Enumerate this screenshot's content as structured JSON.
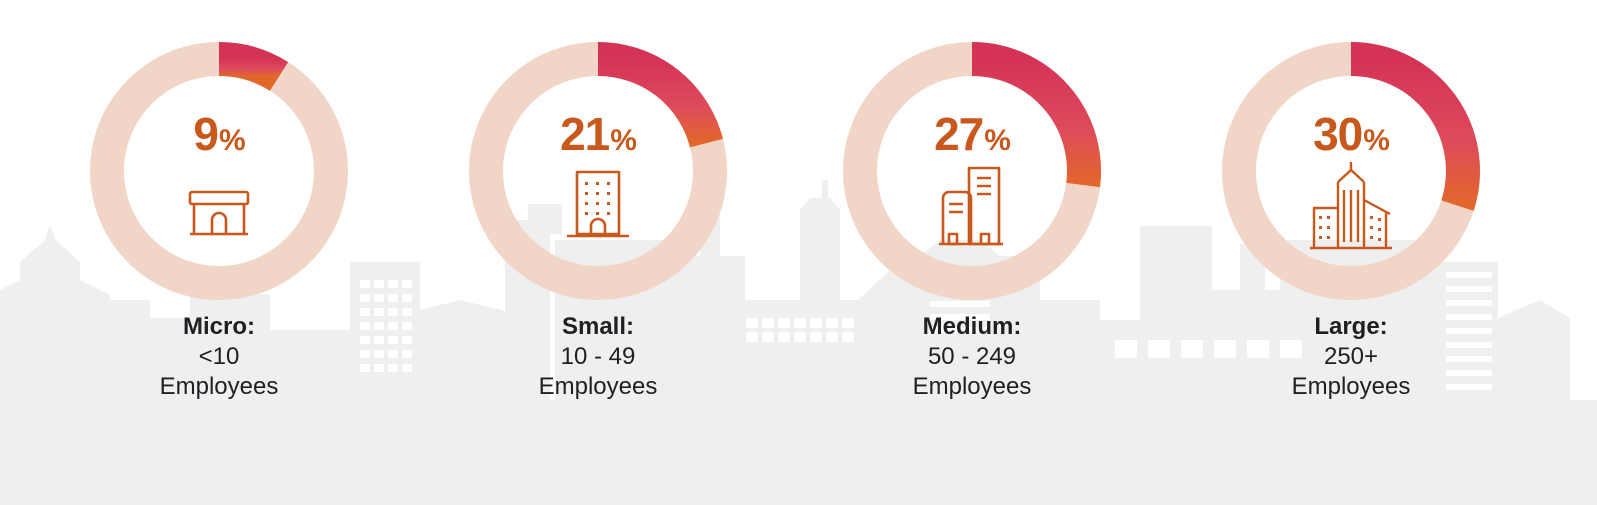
{
  "colors": {
    "background": "#ffffff",
    "skyline": "#efefef",
    "ring_track": "#f1d6c7",
    "arc_start": "#d43355",
    "arc_end": "#e2672b",
    "accent_text": "#c8581c",
    "label_text": "#1f1f24"
  },
  "chart_data": {
    "type": "pie",
    "title": "",
    "categories": [
      "Micro",
      "Small",
      "Medium",
      "Large"
    ],
    "values": [
      9,
      21,
      27,
      30
    ],
    "unit": "%",
    "items": [
      {
        "value": 9,
        "value_text": "9",
        "sign": "%",
        "size_label": "Micro:",
        "range": "<10",
        "unit_label": "Employees",
        "icon": "storefront-icon"
      },
      {
        "value": 21,
        "value_text": "21",
        "sign": "%",
        "size_label": "Small:",
        "range": "10 - 49",
        "unit_label": "Employees",
        "icon": "office-building-icon"
      },
      {
        "value": 27,
        "value_text": "27",
        "sign": "%",
        "size_label": "Medium:",
        "range": "50 - 249",
        "unit_label": "Employees",
        "icon": "twin-towers-icon"
      },
      {
        "value": 30,
        "value_text": "30",
        "sign": "%",
        "size_label": "Large:",
        "range": "250+",
        "unit_label": "Employees",
        "icon": "skyscraper-complex-icon"
      }
    ]
  }
}
